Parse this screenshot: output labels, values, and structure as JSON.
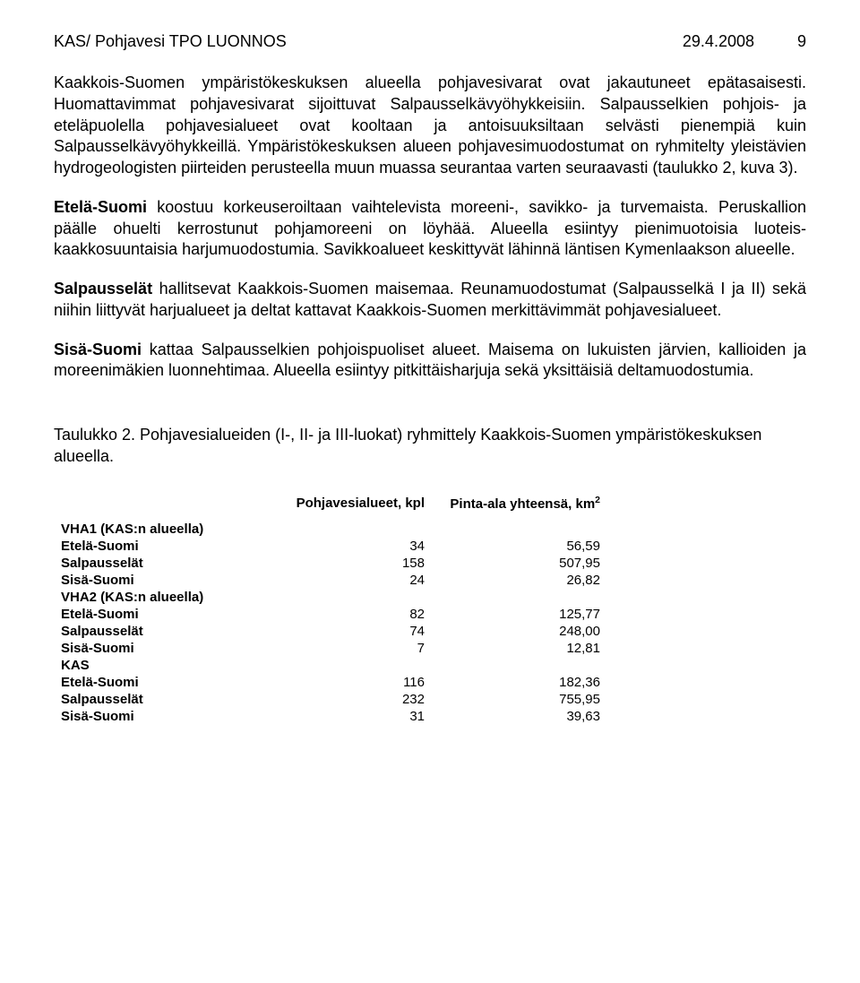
{
  "header": {
    "left": "KAS/ Pohjavesi TPO LUONNOS",
    "date": "29.4.2008",
    "pagenum": "9"
  },
  "p1": "Kaakkois-Suomen ympäristökeskuksen alueella pohjavesivarat ovat jakautuneet epätasaisesti. Huomattavimmat pohjavesivarat sijoittuvat Salpausselkävyöhykkeisiin. Salpausselkien pohjois- ja eteläpuolella pohjavesialueet ovat kooltaan ja antoisuuksiltaan selvästi pienempiä kuin Salpausselkävyöhykkeillä. Ympäristökeskuksen alueen pohjavesimuodostumat on ryhmitelty yleistävien hydrogeologisten piirteiden perusteella muun muassa seurantaa varten seuraavasti (taulukko 2, kuva 3).",
  "p2_lead": "Etelä-Suomi",
  "p2_rest": " koostuu korkeuseroiltaan vaihtelevista moreeni-, savikko- ja turvemaista. Peruskallion päälle ohuelti kerrostunut pohjamoreeni on löyhää. Alueella esiintyy pienimuotoisia luoteis-kaakkosuuntaisia harjumuodostumia. Savikkoalueet keskittyvät lähinnä läntisen Kymenlaakson alueelle.",
  "p3_lead": "Salpausselät",
  "p3_rest": " hallitsevat Kaakkois-Suomen maisemaa. Reunamuodostumat (Salpausselkä I ja II) sekä niihin liittyvät harjualueet ja deltat kattavat Kaakkois-Suomen merkittävimmät pohjavesialueet.",
  "p4_lead": "Sisä-Suomi",
  "p4_rest": " kattaa Salpausselkien pohjoispuoliset alueet. Maisema on lukuisten järvien, kallioiden ja moreenimäkien luonnehtimaa. Alueella esiintyy pitkittäisharjuja sekä yksittäisiä deltamuodostumia.",
  "table_caption": "Taulukko 2. Pohjavesialueiden (I-, II- ja III-luokat) ryhmittely Kaakkois-Suomen ympäristökeskuksen alueella.",
  "table": {
    "col1": "Pohjavesialueet, kpl",
    "col2_pre": "Pinta-ala yhteensä, km",
    "col2_sup": "2",
    "groups": [
      {
        "title": "VHA1 (KAS:n alueella)",
        "rows": [
          {
            "label": "Etelä-Suomi",
            "v1": "34",
            "v2": "56,59"
          },
          {
            "label": "Salpausselät",
            "v1": "158",
            "v2": "507,95"
          },
          {
            "label": "Sisä-Suomi",
            "v1": "24",
            "v2": "26,82"
          }
        ]
      },
      {
        "title": "VHA2 (KAS:n alueella)",
        "rows": [
          {
            "label": "Etelä-Suomi",
            "v1": "82",
            "v2": "125,77"
          },
          {
            "label": "Salpausselät",
            "v1": "74",
            "v2": "248,00"
          },
          {
            "label": "Sisä-Suomi",
            "v1": "7",
            "v2": "12,81"
          }
        ]
      },
      {
        "title": "KAS",
        "rows": [
          {
            "label": "Etelä-Suomi",
            "v1": "116",
            "v2": "182,36"
          },
          {
            "label": "Salpausselät",
            "v1": "232",
            "v2": "755,95"
          },
          {
            "label": "Sisä-Suomi",
            "v1": "31",
            "v2": "39,63"
          }
        ]
      }
    ]
  }
}
